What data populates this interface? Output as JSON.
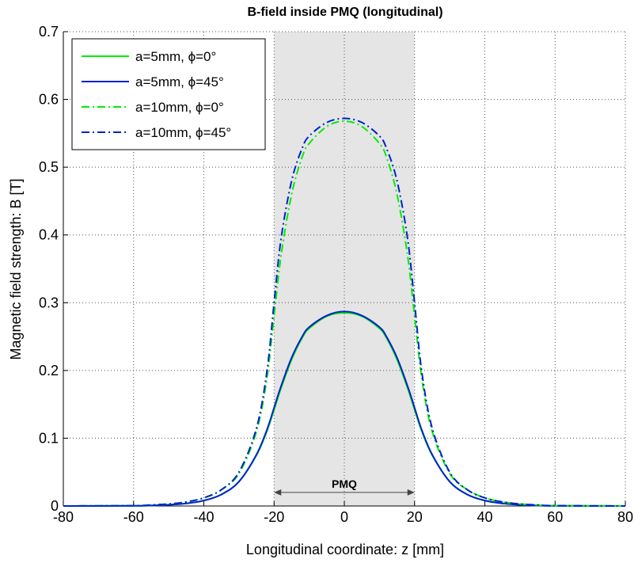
{
  "chart_data": {
    "type": "line",
    "title": "B-field inside PMQ (longitudinal)",
    "xlabel": "Longitudinal coordinate: z [mm]",
    "ylabel": "Magnetic field strength: B [T]",
    "xlim": [
      -80,
      80
    ],
    "ylim": [
      0,
      0.7
    ],
    "xticks": [
      -80,
      -60,
      -40,
      -20,
      0,
      20,
      40,
      60,
      80
    ],
    "yticks": [
      0,
      0.1,
      0.2,
      0.3,
      0.4,
      0.5,
      0.6,
      0.7
    ],
    "xtick_labels": [
      "-80",
      "-60",
      "-40",
      "-20",
      "0",
      "20",
      "40",
      "60",
      "80"
    ],
    "ytick_labels": [
      "0",
      "0.1",
      "0.2",
      "0.3",
      "0.4",
      "0.5",
      "0.6",
      "0.7"
    ],
    "grid": true,
    "grid_style": "dotted",
    "legend_position": "top-left",
    "shaded_region": {
      "x": [
        -20,
        20
      ],
      "color": "#e5e5e5"
    },
    "annotation": {
      "label": "PMQ",
      "x_from": -20,
      "x_to": 20,
      "y": 0.02
    },
    "x": [
      -80,
      -60,
      -55,
      -50,
      -45,
      -40,
      -35,
      -30,
      -25,
      -22,
      -20,
      -18,
      -15,
      -12,
      -10,
      -5,
      0,
      5,
      10,
      12,
      15,
      18,
      20,
      22,
      25,
      30,
      35,
      40,
      45,
      50,
      55,
      60,
      80
    ],
    "series": [
      {
        "name": "a=5mm, ϕ=0°",
        "color": "#00ee00",
        "dash": "solid",
        "values": [
          0,
          0.0003,
          0.0008,
          0.0018,
          0.0038,
          0.008,
          0.017,
          0.036,
          0.075,
          0.111,
          0.142,
          0.174,
          0.216,
          0.248,
          0.262,
          0.28,
          0.285,
          0.28,
          0.262,
          0.248,
          0.216,
          0.174,
          0.142,
          0.111,
          0.075,
          0.036,
          0.017,
          0.008,
          0.0038,
          0.0018,
          0.0008,
          0.0003,
          0
        ]
      },
      {
        "name": "a=5mm, ϕ=45°",
        "color": "#0022cc",
        "dash": "solid",
        "values": [
          0,
          0.0003,
          0.0008,
          0.0018,
          0.0038,
          0.008,
          0.017,
          0.036,
          0.076,
          0.113,
          0.145,
          0.177,
          0.219,
          0.25,
          0.264,
          0.281,
          0.287,
          0.281,
          0.264,
          0.25,
          0.219,
          0.177,
          0.145,
          0.113,
          0.076,
          0.036,
          0.017,
          0.008,
          0.0038,
          0.0018,
          0.0008,
          0.0003,
          0
        ]
      },
      {
        "name": "a=10mm, ϕ=0°",
        "color": "#00ee00",
        "dash": "dashdot",
        "values": [
          0,
          0.0005,
          0.0015,
          0.003,
          0.006,
          0.012,
          0.024,
          0.048,
          0.11,
          0.19,
          0.28,
          0.37,
          0.46,
          0.515,
          0.535,
          0.56,
          0.568,
          0.56,
          0.535,
          0.515,
          0.46,
          0.37,
          0.28,
          0.19,
          0.11,
          0.048,
          0.024,
          0.012,
          0.006,
          0.003,
          0.0015,
          0.0005,
          0
        ]
      },
      {
        "name": "a=10mm, ϕ=45°",
        "color": "#0022cc",
        "dash": "dashdot",
        "values": [
          0,
          0.0005,
          0.0015,
          0.003,
          0.006,
          0.012,
          0.024,
          0.05,
          0.115,
          0.2,
          0.3,
          0.395,
          0.48,
          0.528,
          0.546,
          0.566,
          0.572,
          0.566,
          0.546,
          0.528,
          0.48,
          0.395,
          0.3,
          0.2,
          0.115,
          0.05,
          0.024,
          0.012,
          0.006,
          0.003,
          0.0015,
          0.0005,
          0
        ]
      }
    ]
  }
}
